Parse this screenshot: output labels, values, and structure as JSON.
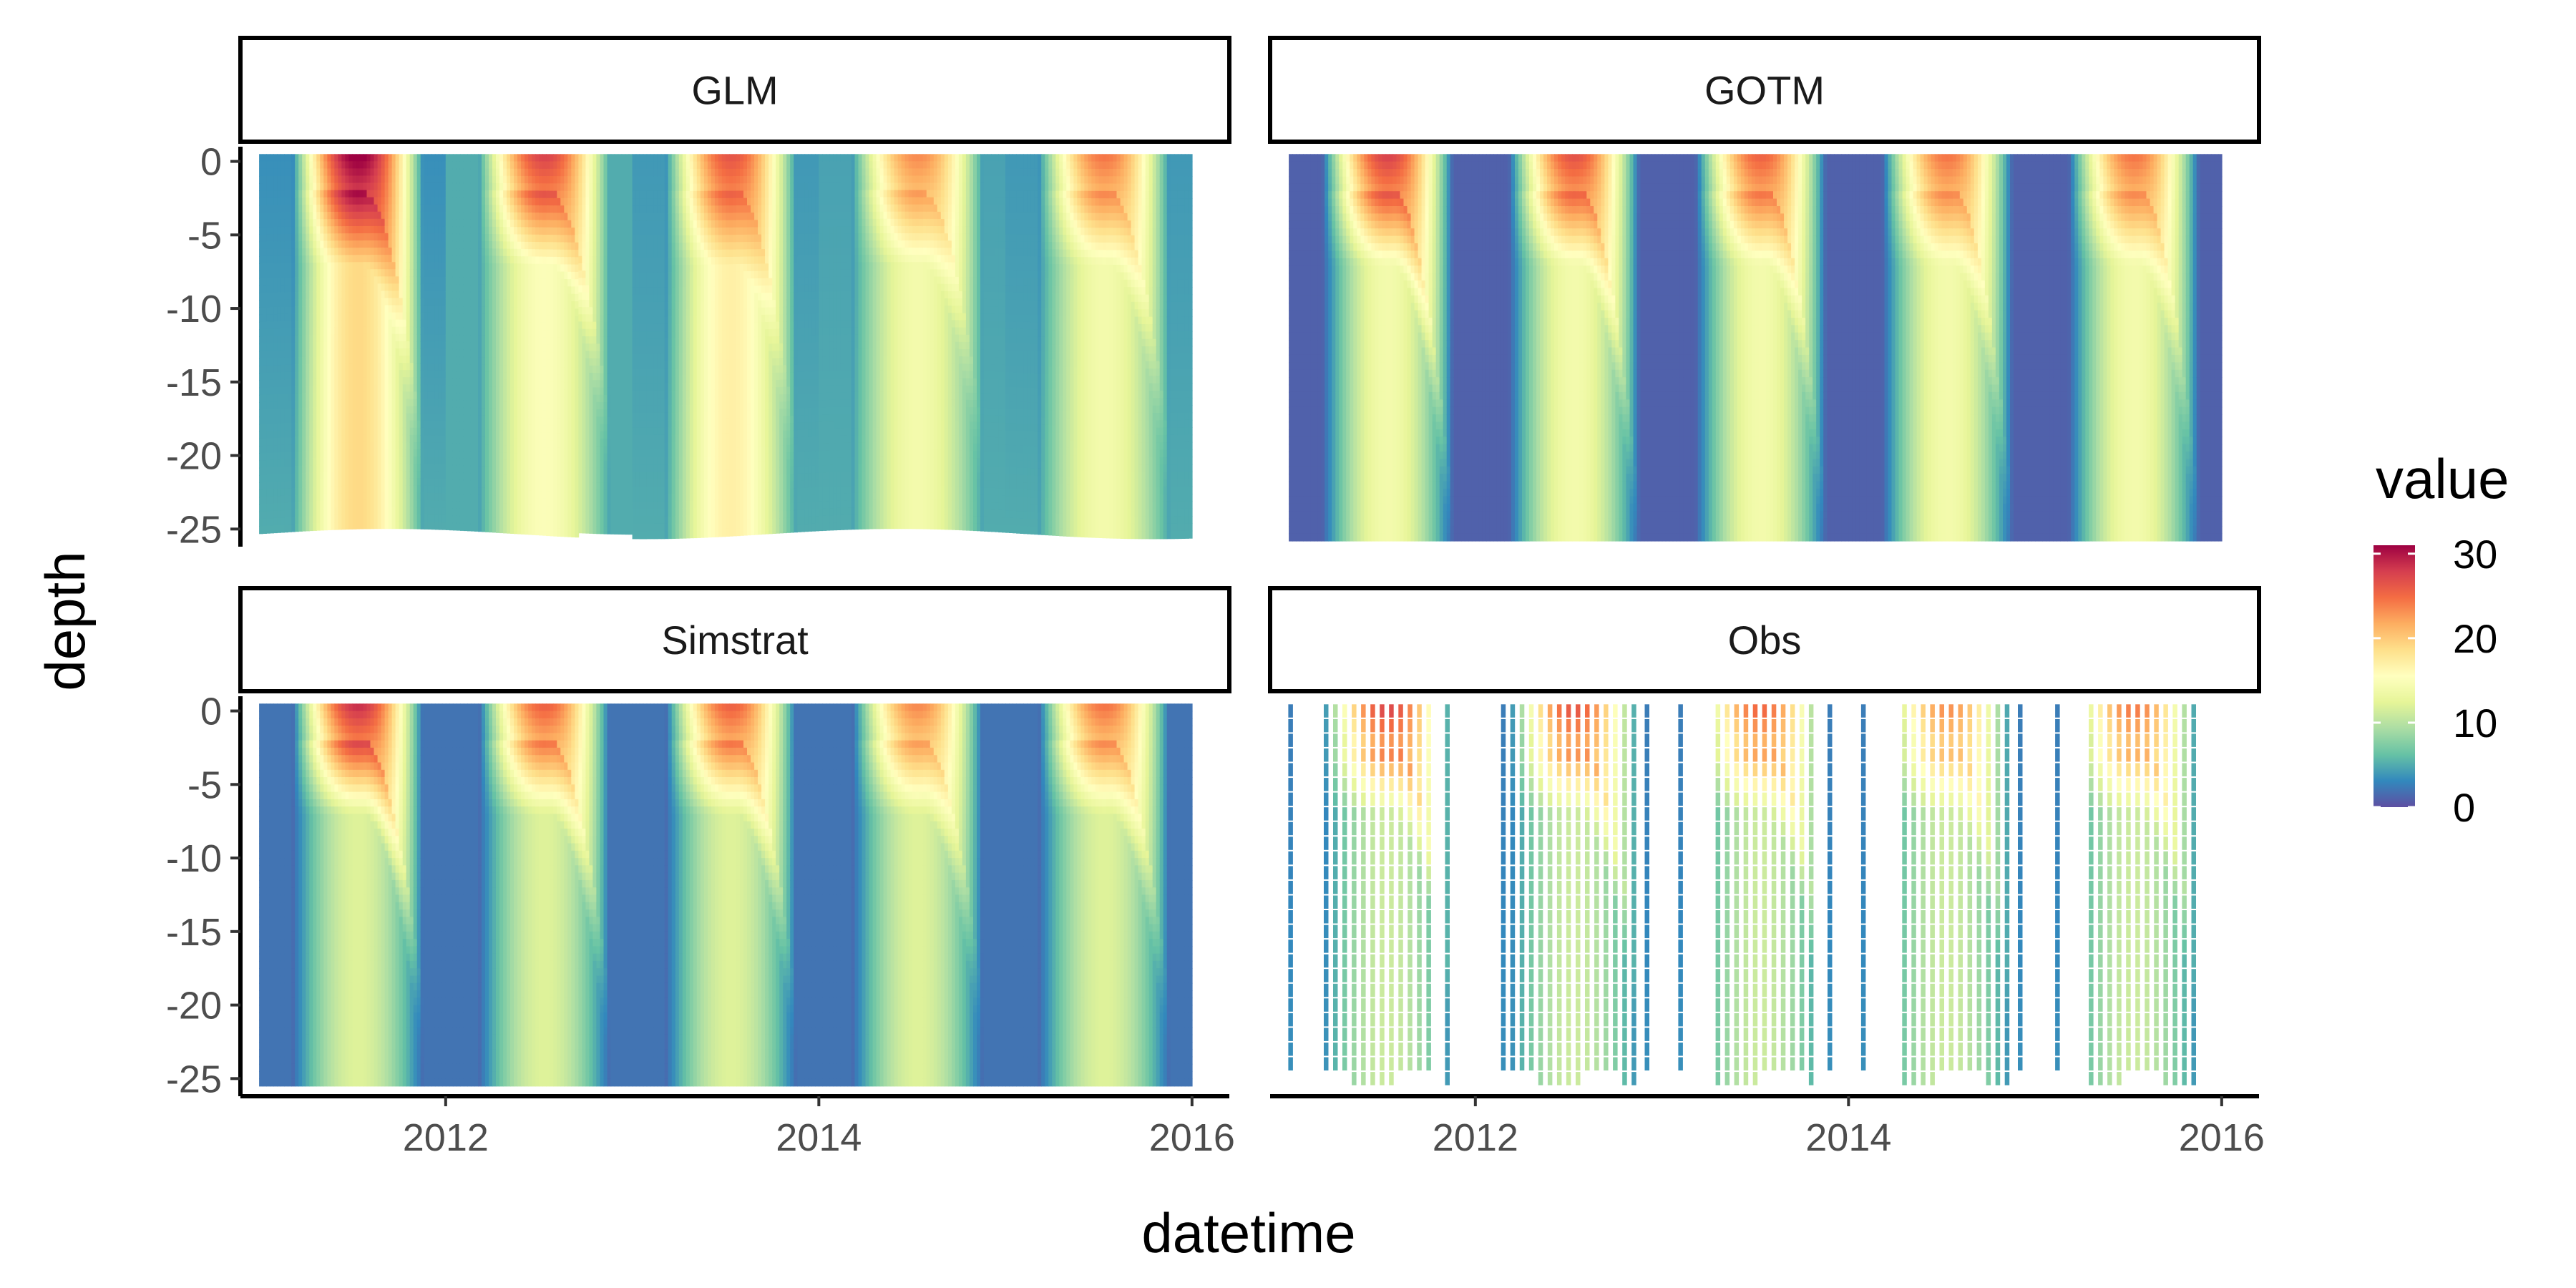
{
  "chart_data": {
    "type": "heatmap",
    "facets": [
      {
        "name": "GLM",
        "kind": "model",
        "bottom_depth": -25.3,
        "bottom_wave": true,
        "years": [
          {
            "start": 2011.0,
            "peak": 31,
            "surface_len": 0.2,
            "mixed_peak": 19,
            "thermocline": -12,
            "winter_surface": 3.0,
            "winter_deep": 4.5
          },
          {
            "start": 2012.0,
            "peak": 27,
            "surface_len": 0.18,
            "mixed_peak": 15,
            "thermocline": -10,
            "winter_surface": 4.5,
            "winter_deep": 4.5
          },
          {
            "start": 2013.0,
            "peak": 26,
            "surface_len": 0.15,
            "mixed_peak": 17,
            "thermocline": -12,
            "winter_surface": 3.5,
            "winter_deep": 4.5
          },
          {
            "start": 2014.0,
            "peak": 23,
            "surface_len": 0.2,
            "mixed_peak": 14,
            "thermocline": -11,
            "winter_surface": 4.0,
            "winter_deep": 4.5
          },
          {
            "start": 2015.0,
            "peak": 24,
            "surface_len": 0.16,
            "mixed_peak": 14,
            "thermocline": -12,
            "winter_surface": 3.5,
            "winter_deep": 4.5
          }
        ]
      },
      {
        "name": "GOTM",
        "kind": "model",
        "bottom_depth": -25.8,
        "bottom_wave": false,
        "years": [
          {
            "start": 2011.0,
            "peak": 27,
            "surface_len": 0.2,
            "mixed_peak": 14,
            "thermocline": -16,
            "winter_surface": 1.0,
            "winter_deep": 1.0
          },
          {
            "start": 2012.0,
            "peak": 26,
            "surface_len": 0.2,
            "mixed_peak": 14,
            "thermocline": -16,
            "winter_surface": 1.0,
            "winter_deep": 1.0
          },
          {
            "start": 2013.0,
            "peak": 25,
            "surface_len": 0.2,
            "mixed_peak": 14,
            "thermocline": -16,
            "winter_surface": 1.0,
            "winter_deep": 1.0
          },
          {
            "start": 2014.0,
            "peak": 24,
            "surface_len": 0.2,
            "mixed_peak": 14,
            "thermocline": -16,
            "winter_surface": 1.0,
            "winter_deep": 1.0
          },
          {
            "start": 2015.0,
            "peak": 24,
            "surface_len": 0.2,
            "mixed_peak": 14,
            "thermocline": -16,
            "winter_surface": 1.0,
            "winter_deep": 1.0
          }
        ]
      },
      {
        "name": "Simstrat",
        "kind": "model",
        "bottom_depth": -25.5,
        "bottom_wave": false,
        "years": [
          {
            "start": 2011.0,
            "peak": 28,
            "surface_len": 0.2,
            "mixed_peak": 12,
            "thermocline": -12,
            "winter_surface": 1.5,
            "winter_deep": 1.5
          },
          {
            "start": 2012.0,
            "peak": 25,
            "surface_len": 0.2,
            "mixed_peak": 12,
            "thermocline": -12,
            "winter_surface": 1.5,
            "winter_deep": 1.5
          },
          {
            "start": 2013.0,
            "peak": 25,
            "surface_len": 0.2,
            "mixed_peak": 12,
            "thermocline": -12,
            "winter_surface": 1.5,
            "winter_deep": 1.5
          },
          {
            "start": 2014.0,
            "peak": 23,
            "surface_len": 0.2,
            "mixed_peak": 12,
            "thermocline": -12,
            "winter_surface": 1.5,
            "winter_deep": 1.5
          },
          {
            "start": 2015.0,
            "peak": 24,
            "surface_len": 0.2,
            "mixed_peak": 12,
            "thermocline": -12,
            "winter_surface": 1.5,
            "winter_deep": 1.5
          }
        ]
      },
      {
        "name": "Obs",
        "kind": "observed",
        "bottom_depth": -25.0,
        "bottom_wave": false,
        "years": [
          {
            "start": 2011.0,
            "peak": 27,
            "surface_len": 0.2,
            "mixed_peak": 11,
            "thermocline": -11,
            "winter_surface": 2.0,
            "winter_deep": 3.0
          },
          {
            "start": 2012.0,
            "peak": 26,
            "surface_len": 0.2,
            "mixed_peak": 11,
            "thermocline": -11,
            "winter_surface": 2.0,
            "winter_deep": 3.0
          },
          {
            "start": 2013.0,
            "peak": 25,
            "surface_len": 0.2,
            "mixed_peak": 11,
            "thermocline": -11,
            "winter_surface": 2.0,
            "winter_deep": 3.0
          },
          {
            "start": 2014.0,
            "peak": 23,
            "surface_len": 0.2,
            "mixed_peak": 11,
            "thermocline": -11,
            "winter_surface": 2.0,
            "winter_deep": 3.0
          },
          {
            "start": 2015.0,
            "peak": 24,
            "surface_len": 0.2,
            "mixed_peak": 11,
            "thermocline": -11,
            "winter_surface": 2.0,
            "winter_deep": 3.0
          }
        ],
        "sampling_dates": [
          2011.01,
          2011.2,
          2011.25,
          2011.3,
          2011.35,
          2011.4,
          2011.45,
          2011.5,
          2011.55,
          2011.6,
          2011.65,
          2011.7,
          2011.75,
          2011.85,
          2012.15,
          2012.2,
          2012.25,
          2012.3,
          2012.35,
          2012.4,
          2012.45,
          2012.5,
          2012.55,
          2012.6,
          2012.65,
          2012.7,
          2012.75,
          2012.8,
          2012.85,
          2012.92,
          2013.1,
          2013.3,
          2013.35,
          2013.4,
          2013.45,
          2013.5,
          2013.55,
          2013.6,
          2013.65,
          2013.7,
          2013.75,
          2013.8,
          2013.9,
          2014.08,
          2014.3,
          2014.35,
          2014.4,
          2014.45,
          2014.5,
          2014.55,
          2014.6,
          2014.65,
          2014.7,
          2014.75,
          2014.8,
          2014.85,
          2014.92,
          2015.12,
          2015.3,
          2015.35,
          2015.4,
          2015.45,
          2015.5,
          2015.55,
          2015.6,
          2015.65,
          2015.7,
          2015.75,
          2015.8,
          2015.85
        ]
      }
    ],
    "x": {
      "label": "datetime",
      "range": [
        2010.9,
        2016.2
      ],
      "ticks": [
        2012,
        2014,
        2016
      ],
      "tick_labels": [
        "2012",
        "2014",
        "2016"
      ]
    },
    "y": {
      "label": "depth",
      "range": [
        -26.2,
        1.0
      ],
      "ticks": [
        0,
        -5,
        -10,
        -15,
        -20,
        -25
      ],
      "tick_labels": [
        "0",
        "-5",
        "-10",
        "-15",
        "-20",
        "-25"
      ]
    },
    "data_x_range": [
      2011.0,
      2016.0
    ],
    "color_scale": {
      "title": "value",
      "name": "Spectral (reversed)",
      "range": [
        0,
        31
      ],
      "ticks": [
        0,
        10,
        20,
        30
      ],
      "tick_labels": [
        "0",
        "10",
        "20",
        "30"
      ],
      "colors": [
        "#5e4fa2",
        "#3288bd",
        "#66c2a5",
        "#abdda4",
        "#e6f598",
        "#ffffbf",
        "#fee08b",
        "#fdae61",
        "#f46d43",
        "#d53e4f",
        "#9e0142"
      ]
    },
    "legend_position": "right",
    "grid": false
  }
}
